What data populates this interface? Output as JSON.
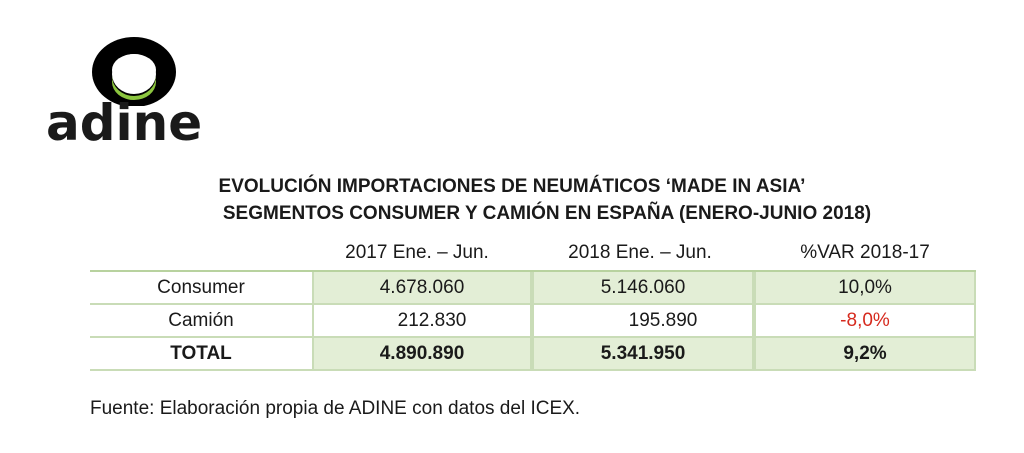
{
  "logo": {
    "wordmark": "adine",
    "ring_color": "#000000",
    "inner_color": "#8cc63f"
  },
  "title": {
    "line1": "EVOLUCIÓN IMPORTACIONES DE NEUMÁTICOS ‘MADE IN ASIA’",
    "line2": "SEGMENTOS CONSUMER Y CAMIÓN EN ESPAÑA (ENERO-JUNIO 2018)"
  },
  "table": {
    "columns": [
      "2017 Ene. – Jun.",
      "2018 Ene. – Jun.",
      "%VAR 2018-17"
    ],
    "rows": [
      {
        "label": "Consumer",
        "v2017": "4.678.060",
        "v2018": "5.146.060",
        "var": "10,0%"
      },
      {
        "label": "Camión",
        "v2017": "212.830",
        "v2018": "195.890",
        "var": "-8,0%"
      },
      {
        "label": "TOTAL",
        "v2017": "4.890.890",
        "v2018": "5.341.950",
        "var": "9,2%"
      }
    ],
    "shade_color": "#e3eed6",
    "negative_color": "#d62a1e"
  },
  "source": "Fuente: Elaboración propia de ADINE con datos del ICEX."
}
